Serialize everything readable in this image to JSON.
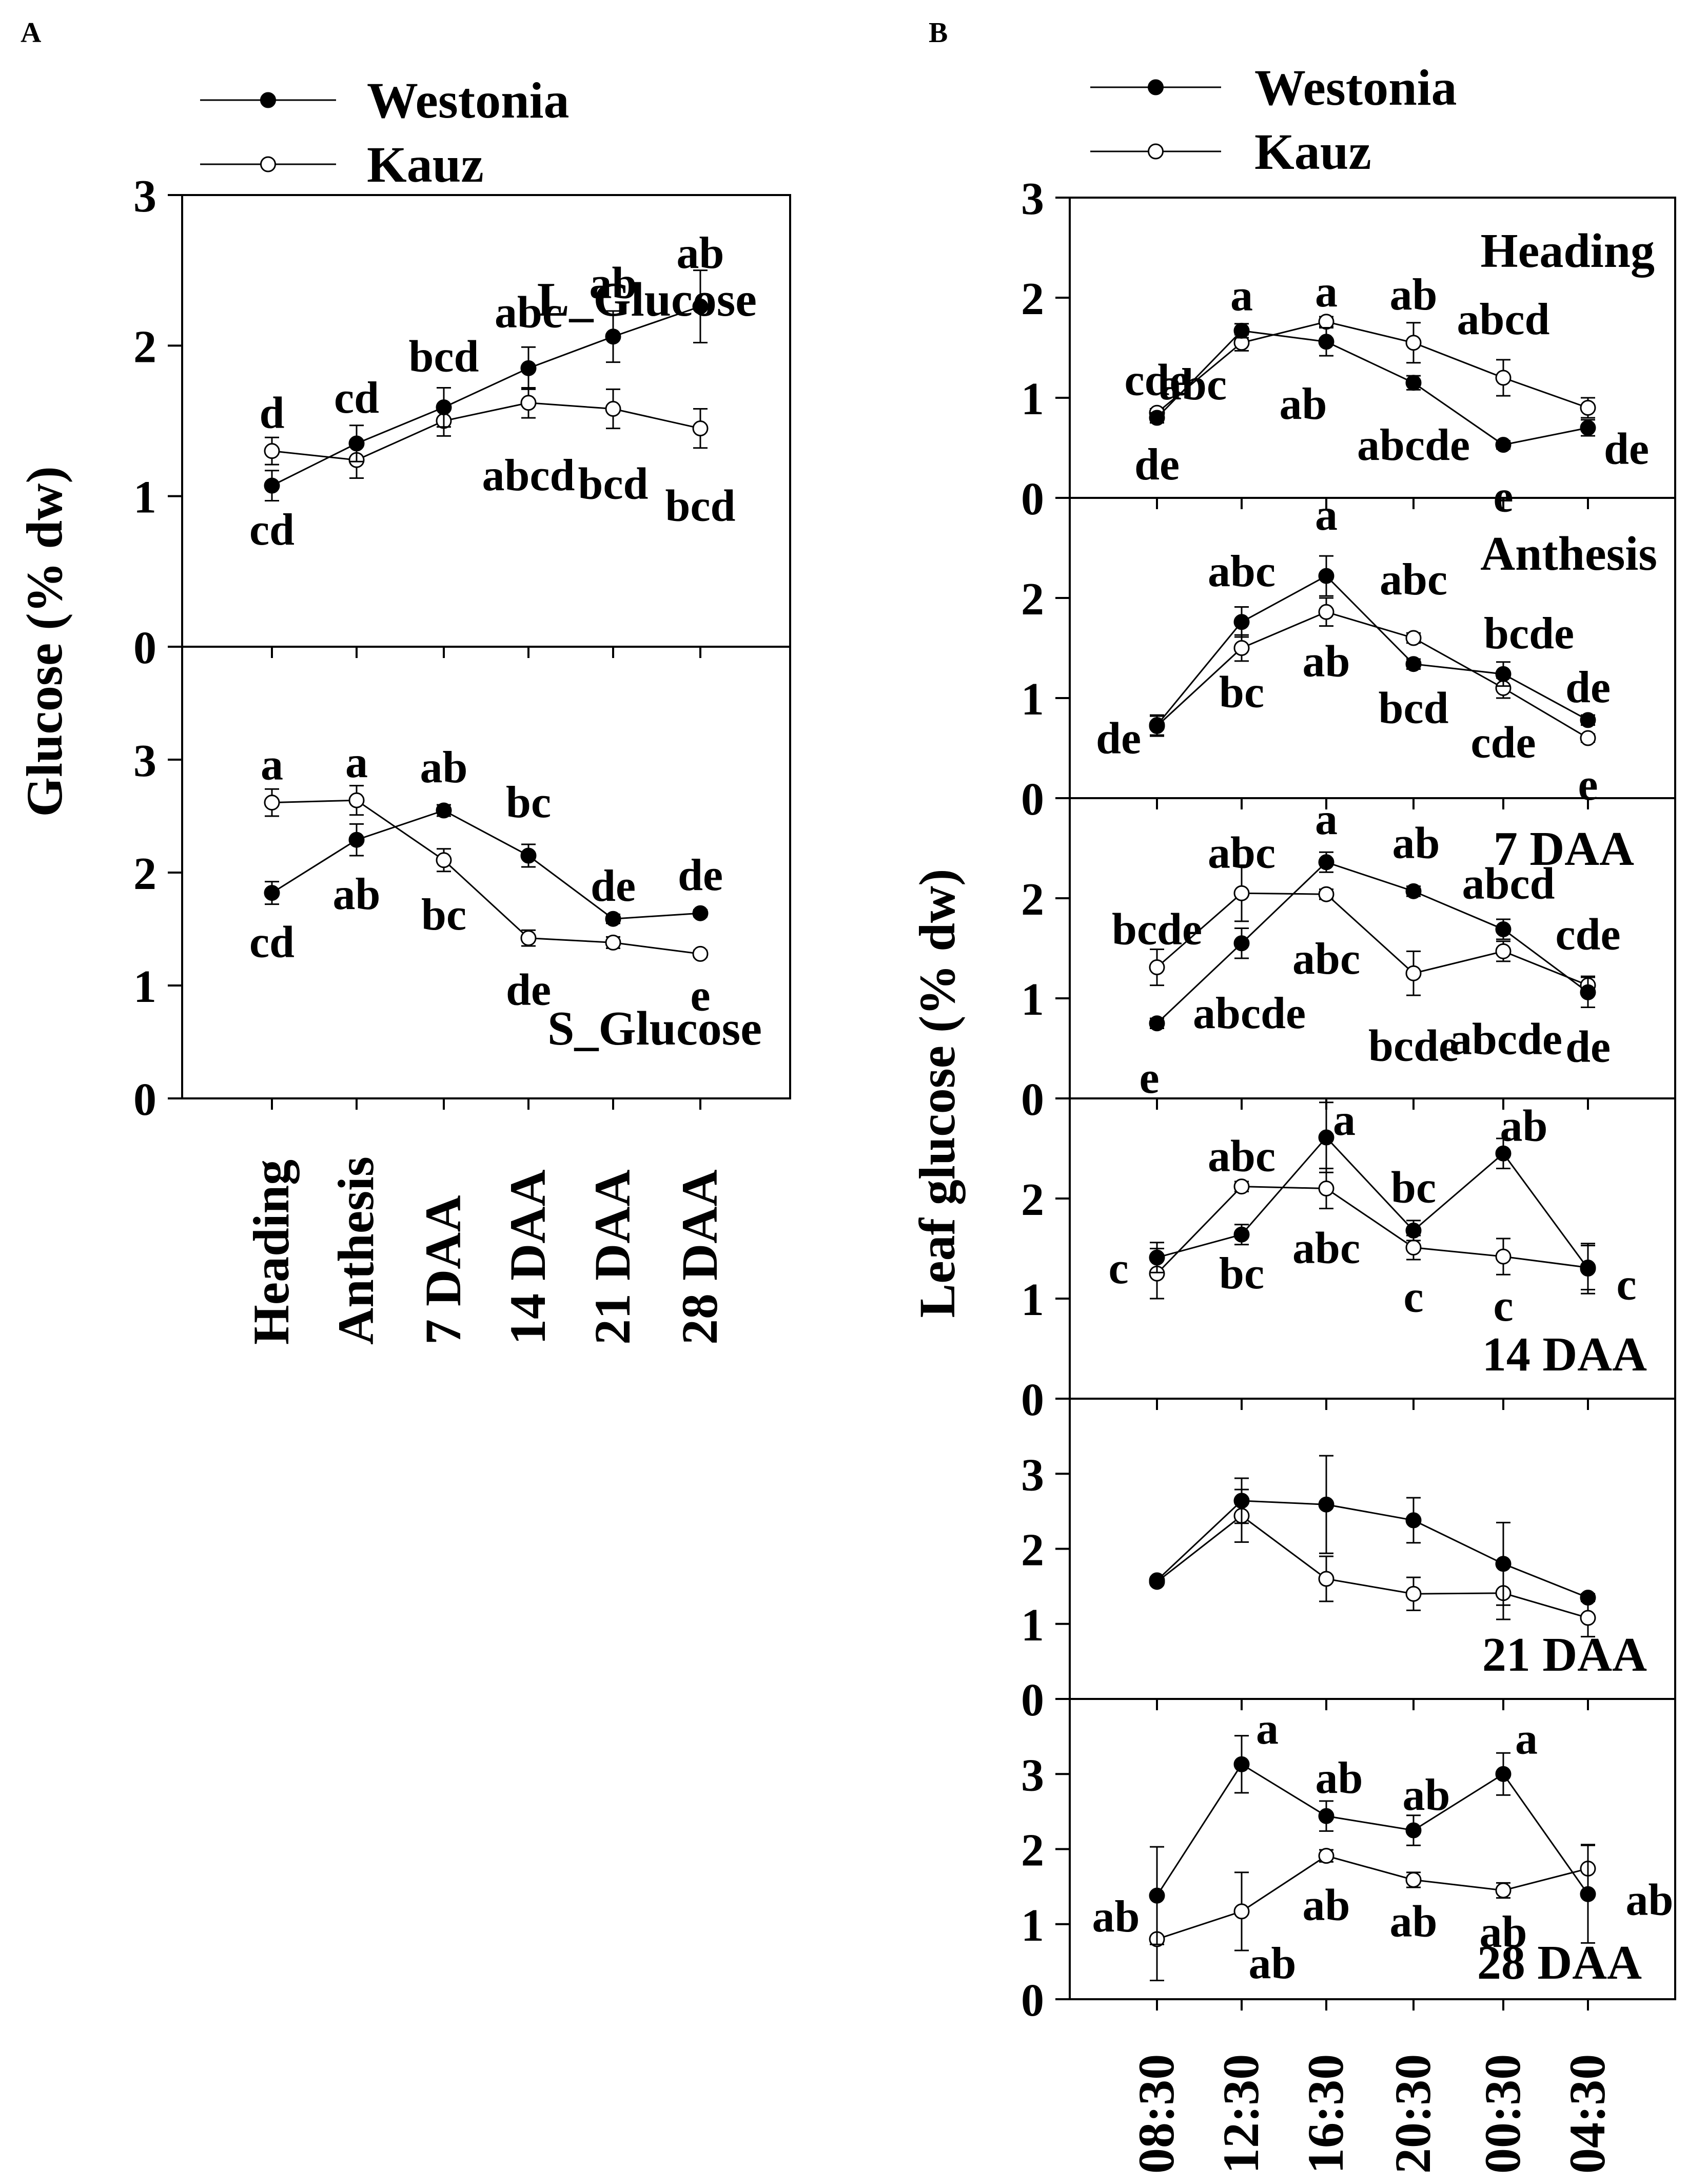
{
  "panel_labels": {
    "a": "A",
    "b": "B"
  },
  "legend": [
    {
      "name": "Westonia",
      "marker": "filled-circle"
    },
    {
      "name": "Kauz",
      "marker": "open-circle"
    }
  ],
  "y_tick_labels": [
    "0",
    "1",
    "2",
    "3"
  ],
  "panel_a": {
    "ylabel": "Glucose (% dw)",
    "categories": [
      "Heading",
      "Anthesis",
      "7 DAA",
      "14 DAA",
      "21 DAA",
      "28 DAA"
    ]
  },
  "panel_b": {
    "ylabel": "Leaf glucose (% dw)",
    "categories": [
      "08:30",
      "12:30",
      "16:30",
      "20:30",
      "00:30",
      "04:30"
    ]
  },
  "colors": {
    "westonia_fill": "#000000",
    "kauz_fill": "#ffffff",
    "line": "#000000"
  },
  "chart_data": [
    {
      "id": "a_top",
      "type": "line",
      "title": "L_Glucose",
      "ylim": [
        0,
        3
      ],
      "categories": [
        "Heading",
        "Anthesis",
        "7 DAA",
        "14 DAA",
        "21 DAA",
        "28 DAA"
      ],
      "series": [
        {
          "name": "Westonia",
          "values": [
            1.07,
            1.35,
            1.59,
            1.85,
            2.06,
            2.26
          ],
          "errors": [
            0.1,
            0.12,
            0.13,
            0.14,
            0.17,
            0.24
          ],
          "labels": [
            "cd",
            "cd",
            "bcd",
            "abc",
            "ab",
            "ab"
          ]
        },
        {
          "name": "Kauz",
          "values": [
            1.3,
            1.24,
            1.5,
            1.62,
            1.58,
            1.45
          ],
          "errors": [
            0.09,
            0.12,
            0.1,
            0.1,
            0.13,
            0.13
          ],
          "labels": [
            "d",
            "",
            "",
            "abcd",
            "bcd",
            "bcd"
          ]
        }
      ]
    },
    {
      "id": "a_bottom",
      "type": "line",
      "title": "S_Glucose",
      "ylim": [
        0,
        4
      ],
      "categories": [
        "Heading",
        "Anthesis",
        "7 DAA",
        "14 DAA",
        "21 DAA",
        "28 DAA"
      ],
      "series": [
        {
          "name": "Westonia",
          "values": [
            1.82,
            2.29,
            2.55,
            2.15,
            1.59,
            1.64
          ],
          "errors": [
            0.1,
            0.14,
            0.05,
            0.1,
            0.04,
            0.03
          ],
          "labels": [
            "cd",
            "ab",
            "ab",
            "bc",
            "de",
            "de"
          ]
        },
        {
          "name": "Kauz",
          "values": [
            2.62,
            2.64,
            2.11,
            1.42,
            1.38,
            1.28
          ],
          "errors": [
            0.12,
            0.13,
            0.1,
            0.07,
            0.05,
            0.03
          ],
          "labels": [
            "a",
            "a",
            "bc",
            "de",
            "",
            "e"
          ]
        }
      ]
    },
    {
      "id": "b1",
      "type": "line",
      "title": "Heading",
      "ylim": [
        0,
        3
      ],
      "categories": [
        "08:30",
        "12:30",
        "16:30",
        "20:30",
        "00:30",
        "04:30"
      ],
      "series": [
        {
          "name": "Westonia",
          "values": [
            0.8,
            1.67,
            1.56,
            1.15,
            0.53,
            0.7
          ],
          "errors": [
            0.05,
            0.07,
            0.14,
            0.07,
            0.04,
            0.08
          ],
          "labels": [
            "de",
            "a",
            "ab",
            "abcde",
            "e",
            "de"
          ]
        },
        {
          "name": "Kauz",
          "values": [
            0.85,
            1.55,
            1.76,
            1.55,
            1.2,
            0.9
          ],
          "errors": [
            0.04,
            0.08,
            0.05,
            0.2,
            0.18,
            0.1
          ],
          "labels": [
            "cde",
            "abc",
            "a",
            "ab",
            "abcd",
            ""
          ]
        }
      ]
    },
    {
      "id": "b2",
      "type": "line",
      "title": "Anthesis",
      "ylim": [
        0,
        3
      ],
      "categories": [
        "08:30",
        "12:30",
        "16:30",
        "20:30",
        "00:30",
        "04:30"
      ],
      "series": [
        {
          "name": "Westonia",
          "values": [
            0.73,
            1.76,
            2.22,
            1.34,
            1.24,
            0.78
          ],
          "errors": [
            0.1,
            0.15,
            0.2,
            0.05,
            0.12,
            0.05
          ],
          "labels": [
            "de",
            "abc",
            "a",
            "bcd",
            "bcde",
            "de"
          ]
        },
        {
          "name": "Kauz",
          "values": [
            0.72,
            1.5,
            1.86,
            1.6,
            1.1,
            0.6
          ],
          "errors": [
            0.1,
            0.13,
            0.14,
            0.05,
            0.1,
            0.04
          ],
          "labels": [
            "",
            "bc",
            "ab",
            "abc",
            "cde",
            "e"
          ]
        }
      ]
    },
    {
      "id": "b3",
      "type": "line",
      "title": "7 DAA",
      "ylim": [
        0,
        3
      ],
      "categories": [
        "08:30",
        "12:30",
        "16:30",
        "20:30",
        "00:30",
        "04:30"
      ],
      "series": [
        {
          "name": "Westonia",
          "values": [
            0.75,
            1.55,
            2.36,
            2.07,
            1.69,
            1.06
          ],
          "errors": [
            0.05,
            0.15,
            0.1,
            0.05,
            0.1,
            0.15
          ],
          "labels": [
            "e",
            "abcde",
            "a",
            "ab",
            "abcd",
            "de"
          ]
        },
        {
          "name": "Kauz",
          "values": [
            1.31,
            2.05,
            2.04,
            1.25,
            1.47,
            1.13
          ],
          "errors": [
            0.18,
            0.28,
            0.05,
            0.22,
            0.1,
            0.09
          ],
          "labels": [
            "bcde",
            "abc",
            "abc",
            "bcde",
            "abcde",
            "cde"
          ]
        }
      ]
    },
    {
      "id": "b4",
      "type": "line",
      "title": "14 DAA",
      "ylim": [
        0,
        3
      ],
      "categories": [
        "08:30",
        "12:30",
        "16:30",
        "20:30",
        "00:30",
        "04:30"
      ],
      "series": [
        {
          "name": "Westonia",
          "values": [
            1.41,
            1.64,
            2.61,
            1.68,
            2.45,
            1.3
          ],
          "errors": [
            0.15,
            0.1,
            0.35,
            0.1,
            0.15,
            0.25
          ],
          "labels": [
            "c",
            "bc",
            "a",
            "bc",
            "ab",
            "c"
          ]
        },
        {
          "name": "Kauz",
          "values": [
            1.25,
            2.12,
            2.1,
            1.51,
            1.42,
            1.31
          ],
          "errors": [
            0.25,
            0.05,
            0.2,
            0.12,
            0.18,
            0.22
          ],
          "labels": [
            "",
            "abc",
            "abc",
            "c",
            "c",
            ""
          ]
        }
      ]
    },
    {
      "id": "b5",
      "type": "line",
      "title": "21 DAA",
      "ylim": [
        0,
        4
      ],
      "categories": [
        "08:30",
        "12:30",
        "16:30",
        "20:30",
        "00:30",
        "04:30"
      ],
      "series": [
        {
          "name": "Westonia",
          "values": [
            1.58,
            2.64,
            2.59,
            2.38,
            1.8,
            1.35
          ],
          "errors": [
            0.04,
            0.3,
            0.65,
            0.3,
            0.55,
            0.05
          ],
          "labels": [
            "",
            "",
            "",
            "",
            "",
            ""
          ]
        },
        {
          "name": "Kauz",
          "values": [
            1.56,
            2.44,
            1.6,
            1.4,
            1.41,
            1.08
          ],
          "errors": [
            0.04,
            0.35,
            0.3,
            0.22,
            0.35,
            0.25
          ],
          "labels": [
            "",
            "",
            "",
            "",
            "",
            ""
          ]
        }
      ]
    },
    {
      "id": "b6",
      "type": "line",
      "title": "28 DAA",
      "ylim": [
        0,
        4
      ],
      "categories": [
        "08:30",
        "12:30",
        "16:30",
        "20:30",
        "00:30",
        "04:30"
      ],
      "series": [
        {
          "name": "Westonia",
          "values": [
            1.38,
            3.13,
            2.44,
            2.25,
            3.0,
            1.4
          ],
          "errors": [
            0.65,
            0.38,
            0.2,
            0.2,
            0.28,
            0.65
          ],
          "labels": [
            "ab",
            "a",
            "ab",
            "ab",
            "a",
            "ab"
          ]
        },
        {
          "name": "Kauz",
          "values": [
            0.8,
            1.17,
            1.91,
            1.59,
            1.45,
            1.74
          ],
          "errors": [
            0.55,
            0.52,
            0.08,
            0.1,
            0.1,
            0.32
          ],
          "labels": [
            "",
            "ab",
            "ab",
            "ab",
            "ab",
            ""
          ]
        }
      ]
    }
  ]
}
